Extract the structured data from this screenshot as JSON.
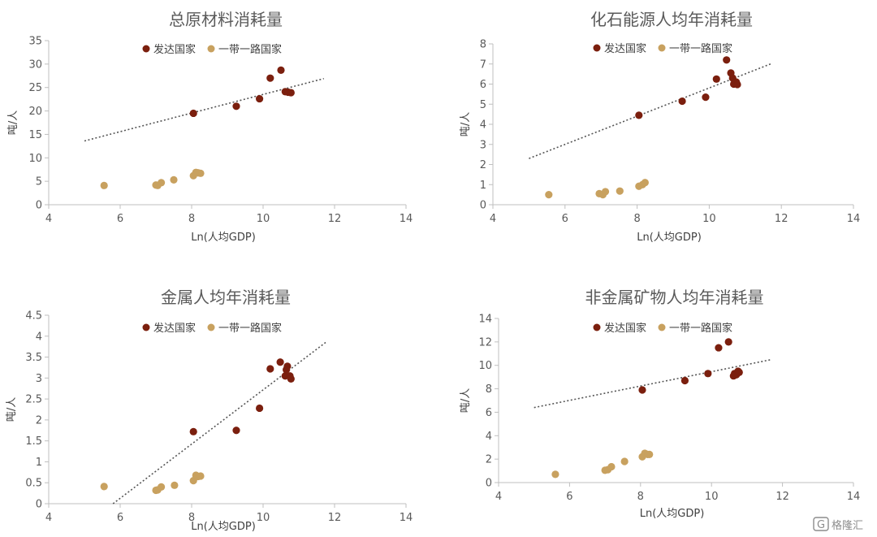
{
  "colors": {
    "developed": "#7B1F0E",
    "belt_road": "#C8A15F",
    "trend": "#555555",
    "axis": "#BFBFBF"
  },
  "legend_labels": {
    "developed": "发达国家",
    "belt_road": "一带一路国家"
  },
  "watermark": {
    "icon": "gelonghui-logo-icon",
    "text": "格隆汇"
  },
  "chart_data": [
    {
      "type": "scatter",
      "title": "总原材料消耗量",
      "xlabel": "Ln(人均GDP)",
      "ylabel": "吨/人",
      "xlim": [
        4,
        14
      ],
      "ylim": [
        0,
        35
      ],
      "xticks": [
        4,
        6,
        8,
        10,
        12,
        14
      ],
      "yticks": [
        0,
        5,
        10,
        15,
        20,
        25,
        30,
        35
      ],
      "legend": "top-left",
      "series": [
        {
          "name": "发达国家",
          "points": [
            [
              8.05,
              19.5
            ],
            [
              9.25,
              21.0
            ],
            [
              9.9,
              22.6
            ],
            [
              10.2,
              27.0
            ],
            [
              10.5,
              28.7
            ],
            [
              10.62,
              24.1
            ],
            [
              10.7,
              24.0
            ],
            [
              10.78,
              23.9
            ]
          ]
        },
        {
          "name": "一带一路国家",
          "points": [
            [
              5.55,
              4.1
            ],
            [
              7.0,
              4.2
            ],
            [
              7.05,
              4.1
            ],
            [
              7.15,
              4.7
            ],
            [
              7.5,
              5.3
            ],
            [
              8.05,
              6.2
            ],
            [
              8.12,
              6.9
            ],
            [
              8.18,
              6.8
            ],
            [
              8.25,
              6.7
            ]
          ]
        }
      ],
      "trendline": [
        [
          5.0,
          13.6
        ],
        [
          11.7,
          26.9
        ]
      ]
    },
    {
      "type": "scatter",
      "title": "化石能源人均年消耗量",
      "xlabel": "Ln(人均GDP)",
      "ylabel": "吨/人",
      "xlim": [
        4,
        14
      ],
      "ylim": [
        0,
        8
      ],
      "xticks": [
        4,
        6,
        8,
        10,
        12,
        14
      ],
      "yticks": [
        0,
        1,
        2,
        3,
        4,
        5,
        6,
        7,
        8
      ],
      "legend": "top-center",
      "series": [
        {
          "name": "发达国家",
          "points": [
            [
              8.05,
              4.45
            ],
            [
              9.25,
              5.15
            ],
            [
              9.9,
              5.35
            ],
            [
              10.2,
              6.25
            ],
            [
              10.48,
              7.2
            ],
            [
              10.6,
              6.55
            ],
            [
              10.65,
              6.3
            ],
            [
              10.68,
              6.0
            ],
            [
              10.75,
              6.1
            ],
            [
              10.78,
              5.98
            ]
          ]
        },
        {
          "name": "一带一路国家",
          "points": [
            [
              5.55,
              0.5
            ],
            [
              6.95,
              0.55
            ],
            [
              7.05,
              0.5
            ],
            [
              7.12,
              0.65
            ],
            [
              7.52,
              0.68
            ],
            [
              8.05,
              0.92
            ],
            [
              8.15,
              1.0
            ],
            [
              8.22,
              1.1
            ]
          ]
        }
      ],
      "trendline": [
        [
          5.0,
          2.3
        ],
        [
          11.7,
          7.0
        ]
      ]
    },
    {
      "type": "scatter",
      "title": "金属人均年消耗量",
      "xlabel": "Ln(人均GDP)",
      "ylabel": "吨/人",
      "xlim": [
        4,
        14
      ],
      "ylim": [
        0,
        4.5
      ],
      "xticks": [
        4,
        6,
        8,
        10,
        12,
        14
      ],
      "yticks": [
        0,
        0.5,
        1,
        1.5,
        2,
        2.5,
        3,
        3.5,
        4,
        4.5
      ],
      "legend": "top-left",
      "series": [
        {
          "name": "发达国家",
          "points": [
            [
              8.05,
              1.72
            ],
            [
              9.25,
              1.75
            ],
            [
              9.9,
              2.28
            ],
            [
              10.2,
              3.22
            ],
            [
              10.48,
              3.38
            ],
            [
              10.62,
              3.05
            ],
            [
              10.65,
              3.2
            ],
            [
              10.68,
              3.28
            ],
            [
              10.75,
              3.05
            ],
            [
              10.78,
              2.98
            ]
          ]
        },
        {
          "name": "一带一路国家",
          "points": [
            [
              5.55,
              0.41
            ],
            [
              7.0,
              0.32
            ],
            [
              7.05,
              0.33
            ],
            [
              7.15,
              0.4
            ],
            [
              7.52,
              0.44
            ],
            [
              8.05,
              0.55
            ],
            [
              8.12,
              0.68
            ],
            [
              8.18,
              0.65
            ],
            [
              8.25,
              0.66
            ]
          ]
        }
      ],
      "trendline": [
        [
          5.8,
          0.0
        ],
        [
          11.75,
          3.85
        ]
      ]
    },
    {
      "type": "scatter",
      "title": "非金属矿物人均年消耗量",
      "xlabel": "Ln(人均GDP)",
      "ylabel": "吨/人",
      "xlim": [
        4,
        14
      ],
      "ylim": [
        0,
        14
      ],
      "xticks": [
        4,
        6,
        8,
        10,
        12,
        14
      ],
      "yticks": [
        0,
        2,
        4,
        6,
        8,
        10,
        12,
        14
      ],
      "legend": "top-center",
      "series": [
        {
          "name": "发达国家",
          "points": [
            [
              8.05,
              7.9
            ],
            [
              9.25,
              8.7
            ],
            [
              9.9,
              9.3
            ],
            [
              10.2,
              11.5
            ],
            [
              10.48,
              12.0
            ],
            [
              10.62,
              9.1
            ],
            [
              10.65,
              9.3
            ],
            [
              10.7,
              9.2
            ],
            [
              10.75,
              9.5
            ],
            [
              10.78,
              9.4
            ]
          ]
        },
        {
          "name": "一带一路国家",
          "points": [
            [
              5.6,
              0.7
            ],
            [
              7.0,
              1.05
            ],
            [
              7.08,
              1.1
            ],
            [
              7.18,
              1.35
            ],
            [
              7.55,
              1.8
            ],
            [
              8.05,
              2.2
            ],
            [
              8.12,
              2.5
            ],
            [
              8.2,
              2.4
            ],
            [
              8.25,
              2.4
            ]
          ]
        }
      ],
      "trendline": [
        [
          5.0,
          6.4
        ],
        [
          11.7,
          10.5
        ]
      ]
    }
  ]
}
